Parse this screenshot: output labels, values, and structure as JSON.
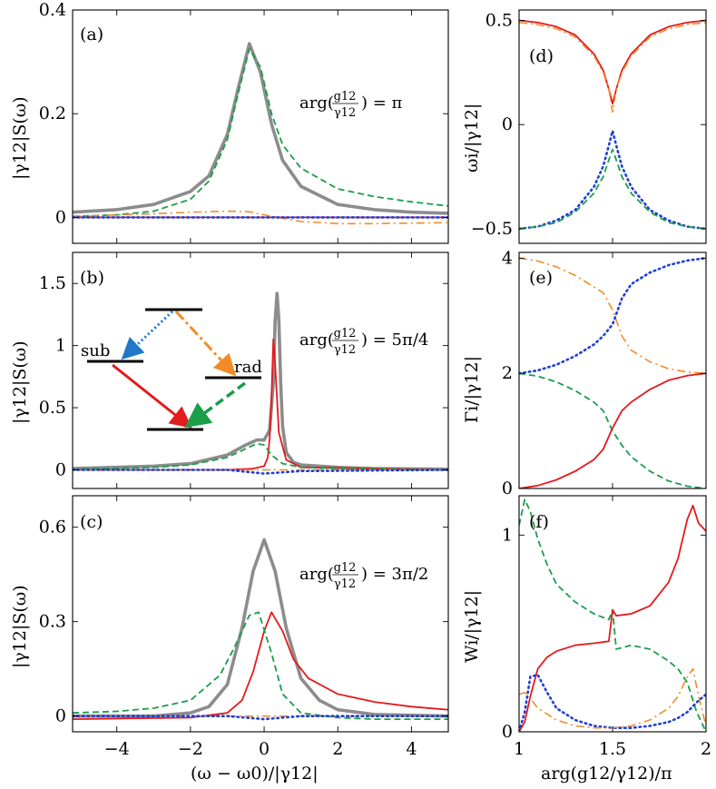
{
  "colors": {
    "gray": "#8c8c8c",
    "red": "#e41a1c",
    "green": "#1a9e4a",
    "orange": "#f28c28",
    "blue": "#1f3fd8",
    "cyan_blue": "#1f78c8"
  },
  "labels": {
    "left_ylabel": "|γ12|S(ω)",
    "left_xlabel": "(ω − ω0)/|γ12|",
    "right_xlabel": "arg(g12/γ12)/π",
    "right_ylabel_d": "ωi/|γ12|",
    "right_ylabel_e": "Γi/|γ12|",
    "right_ylabel_f": "Wi/|γ12|",
    "inset_sub": "sub",
    "inset_rad": "rad"
  },
  "panels_left": [
    {
      "tag": "(a)",
      "annotation_prefix": "arg(",
      "annotation_num": "g12",
      "annotation_den": "γ12",
      "annotation_suffix": ") = π",
      "yticks": [
        "0",
        "0.2",
        "0.4"
      ],
      "yticklabels": [
        "0",
        "0.2",
        "0.4"
      ],
      "ylim": [
        -0.05,
        0.4
      ]
    },
    {
      "tag": "(b)",
      "annotation_prefix": "arg(",
      "annotation_num": "g12",
      "annotation_den": "γ12",
      "annotation_suffix": ") = 5π/4",
      "yticks": [
        "0",
        "0.5",
        "1",
        "1.5"
      ],
      "ylim": [
        -0.15,
        1.75
      ]
    },
    {
      "tag": "(c)",
      "annotation_prefix": "arg(",
      "annotation_num": "g12",
      "annotation_den": "γ12",
      "annotation_suffix": ") = 3π/2",
      "yticks": [
        "0",
        "0.3",
        "0.6"
      ],
      "ylim": [
        -0.05,
        0.7
      ]
    }
  ],
  "panels_right": [
    {
      "tag": "(d)",
      "yticks": [
        "−0.5",
        "0",
        "0.5"
      ]
    },
    {
      "tag": "(e)",
      "yticks": [
        "0",
        "2",
        "4"
      ]
    },
    {
      "tag": "(f)",
      "yticks": [
        "0",
        "1"
      ]
    }
  ],
  "left_xticks": [
    "−4",
    "−2",
    "0",
    "2",
    "4"
  ],
  "right_xticks": [
    "1",
    "1.5",
    "2"
  ],
  "chart_data": [
    {
      "type": "line",
      "panel": "(a)",
      "xlim": [
        -5.2,
        5
      ],
      "ylim": [
        -0.05,
        0.4
      ],
      "series": [
        {
          "color": "gray",
          "style": "solid",
          "x": [
            -5.2,
            -4,
            -3,
            -2,
            -1.5,
            -1,
            -0.7,
            -0.4,
            -0.1,
            0.2,
            0.5,
            1,
            2,
            3,
            4,
            5
          ],
          "y": [
            0.01,
            0.015,
            0.025,
            0.05,
            0.08,
            0.16,
            0.25,
            0.335,
            0.28,
            0.18,
            0.11,
            0.06,
            0.025,
            0.015,
            0.01,
            0.008
          ]
        },
        {
          "color": "green",
          "style": "dashed",
          "x": [
            -5.2,
            -4,
            -3,
            -2,
            -1.5,
            -1,
            -0.7,
            -0.4,
            -0.1,
            0.2,
            0.5,
            1,
            2,
            3,
            4,
            5
          ],
          "y": [
            0.002,
            0.005,
            0.012,
            0.035,
            0.07,
            0.15,
            0.24,
            0.325,
            0.29,
            0.2,
            0.14,
            0.095,
            0.055,
            0.04,
            0.03,
            0.022
          ]
        },
        {
          "color": "orange",
          "style": "dashdot",
          "x": [
            -5.2,
            -3,
            -2,
            -1,
            -0.4,
            0,
            1,
            2,
            3,
            5
          ],
          "y": [
            0.002,
            0.007,
            0.01,
            0.012,
            0.011,
            0.005,
            -0.008,
            -0.012,
            -0.012,
            -0.01
          ]
        },
        {
          "color": "red",
          "style": "solid",
          "x": [
            -5.2,
            5
          ],
          "y": [
            0,
            0
          ]
        },
        {
          "color": "blue",
          "style": "dotted",
          "x": [
            -5.2,
            5
          ],
          "y": [
            0,
            0
          ]
        }
      ]
    },
    {
      "type": "line",
      "panel": "(b)",
      "xlim": [
        -5.2,
        5
      ],
      "ylim": [
        -0.15,
        1.75
      ],
      "series": [
        {
          "color": "gray",
          "style": "solid",
          "x": [
            -5.2,
            -3,
            -2,
            -1,
            -0.5,
            -0.2,
            0,
            0.15,
            0.25,
            0.3,
            0.35,
            0.4,
            0.45,
            0.5,
            0.6,
            0.8,
            1,
            2,
            3,
            5
          ],
          "y": [
            0.01,
            0.03,
            0.05,
            0.12,
            0.2,
            0.24,
            0.24,
            0.32,
            0.7,
            1.2,
            1.42,
            1.2,
            0.7,
            0.35,
            0.14,
            0.06,
            0.04,
            0.02,
            0.01,
            0.005
          ]
        },
        {
          "color": "red",
          "style": "solid",
          "x": [
            -5.2,
            -1,
            -0.3,
            0,
            0.1,
            0.15,
            0.2,
            0.25,
            0.3,
            0.4,
            0.6,
            1,
            5
          ],
          "y": [
            0,
            0,
            0.01,
            0.03,
            0.1,
            0.25,
            0.6,
            1.05,
            0.85,
            0.3,
            0.08,
            0.02,
            0
          ]
        },
        {
          "color": "green",
          "style": "dashed",
          "x": [
            -5.2,
            -3,
            -2,
            -1,
            -0.5,
            -0.2,
            0,
            0.2,
            0.5,
            1,
            2,
            5
          ],
          "y": [
            0.005,
            0.02,
            0.04,
            0.1,
            0.17,
            0.21,
            0.2,
            0.12,
            0.05,
            0.02,
            0.01,
            0
          ]
        },
        {
          "color": "orange",
          "style": "dashdot",
          "x": [
            -5.2,
            5
          ],
          "y": [
            0,
            0
          ]
        },
        {
          "color": "blue",
          "style": "dotted",
          "x": [
            -5.2,
            -1,
            0,
            1,
            5
          ],
          "y": [
            0,
            0,
            -0.03,
            -0.01,
            0
          ]
        }
      ]
    },
    {
      "type": "line",
      "panel": "(c)",
      "xlim": [
        -5.2,
        5
      ],
      "ylim": [
        -0.05,
        0.7
      ],
      "series": [
        {
          "color": "gray",
          "style": "solid",
          "x": [
            -5.2,
            -3,
            -2,
            -1.5,
            -1,
            -0.6,
            -0.3,
            0,
            0.3,
            0.6,
            1,
            1.5,
            2,
            3,
            5
          ],
          "y": [
            0,
            0,
            0.01,
            0.03,
            0.1,
            0.28,
            0.46,
            0.56,
            0.46,
            0.28,
            0.12,
            0.05,
            0.02,
            0.005,
            0
          ]
        },
        {
          "color": "red",
          "style": "solid",
          "x": [
            -5.2,
            -2,
            -1,
            -0.6,
            -0.3,
            0,
            0.2,
            0.5,
            0.8,
            1.2,
            2,
            3,
            4,
            5
          ],
          "y": [
            -0.01,
            -0.005,
            0.01,
            0.05,
            0.14,
            0.27,
            0.33,
            0.27,
            0.18,
            0.12,
            0.07,
            0.045,
            0.03,
            0.02
          ]
        },
        {
          "color": "green",
          "style": "dashed",
          "x": [
            -5.2,
            -4,
            -3,
            -2,
            -1.2,
            -0.8,
            -0.4,
            -0.15,
            0.2,
            0.5,
            1,
            2,
            3,
            5
          ],
          "y": [
            0.01,
            0.015,
            0.025,
            0.05,
            0.13,
            0.22,
            0.32,
            0.33,
            0.2,
            0.07,
            0.01,
            -0.005,
            -0.01,
            -0.01
          ]
        },
        {
          "color": "orange",
          "style": "dashdot",
          "x": [
            -5.2,
            5
          ],
          "y": [
            0,
            0
          ]
        },
        {
          "color": "blue",
          "style": "dotted",
          "x": [
            -5.2,
            -1,
            0,
            1,
            5
          ],
          "y": [
            0,
            0,
            -0.01,
            0,
            0
          ]
        }
      ]
    },
    {
      "type": "line",
      "panel": "(d)",
      "xlim": [
        1,
        2
      ],
      "ylim": [
        -0.57,
        0.55
      ],
      "series": [
        {
          "color": "red",
          "style": "solid",
          "x": [
            1,
            1.1,
            1.2,
            1.3,
            1.4,
            1.45,
            1.48,
            1.5,
            1.52,
            1.55,
            1.6,
            1.7,
            1.8,
            1.9,
            2
          ],
          "y": [
            0.5,
            0.49,
            0.47,
            0.43,
            0.34,
            0.26,
            0.17,
            0.1,
            0.17,
            0.26,
            0.34,
            0.43,
            0.47,
            0.49,
            0.5
          ]
        },
        {
          "color": "orange",
          "style": "dashdot",
          "x": [
            1,
            1.1,
            1.2,
            1.3,
            1.4,
            1.45,
            1.48,
            1.5,
            1.52,
            1.55,
            1.6,
            1.7,
            1.8,
            1.9,
            2
          ],
          "y": [
            0.49,
            0.48,
            0.46,
            0.42,
            0.33,
            0.25,
            0.17,
            0.06,
            0.17,
            0.25,
            0.33,
            0.42,
            0.46,
            0.48,
            0.49
          ]
        },
        {
          "color": "blue",
          "style": "dotted",
          "x": [
            1,
            1.1,
            1.2,
            1.3,
            1.4,
            1.45,
            1.48,
            1.5,
            1.52,
            1.55,
            1.6,
            1.7,
            1.8,
            1.9,
            2
          ],
          "y": [
            -0.5,
            -0.49,
            -0.46,
            -0.41,
            -0.3,
            -0.2,
            -0.1,
            -0.03,
            -0.1,
            -0.2,
            -0.3,
            -0.41,
            -0.46,
            -0.49,
            -0.5
          ]
        },
        {
          "color": "green",
          "style": "dashed",
          "x": [
            1,
            1.1,
            1.2,
            1.3,
            1.4,
            1.45,
            1.48,
            1.5,
            1.52,
            1.55,
            1.6,
            1.7,
            1.8,
            1.9,
            2
          ],
          "y": [
            -0.5,
            -0.49,
            -0.47,
            -0.42,
            -0.33,
            -0.25,
            -0.17,
            -0.12,
            -0.17,
            -0.25,
            -0.33,
            -0.42,
            -0.47,
            -0.49,
            -0.5
          ]
        }
      ]
    },
    {
      "type": "line",
      "panel": "(e)",
      "xlim": [
        1,
        2
      ],
      "ylim": [
        0,
        4.1
      ],
      "series": [
        {
          "color": "orange",
          "style": "dashdot",
          "x": [
            1,
            1.1,
            1.2,
            1.3,
            1.4,
            1.45,
            1.5,
            1.55,
            1.6,
            1.7,
            1.8,
            1.9,
            2
          ],
          "y": [
            4,
            3.95,
            3.85,
            3.7,
            3.5,
            3.4,
            3.1,
            2.65,
            2.4,
            2.2,
            2.08,
            2.02,
            2
          ]
        },
        {
          "color": "blue",
          "style": "dotted",
          "x": [
            1,
            1.1,
            1.2,
            1.3,
            1.4,
            1.45,
            1.5,
            1.55,
            1.6,
            1.7,
            1.8,
            1.9,
            2
          ],
          "y": [
            2,
            2.05,
            2.15,
            2.3,
            2.5,
            2.65,
            2.85,
            3.3,
            3.55,
            3.75,
            3.88,
            3.96,
            4
          ]
        },
        {
          "color": "green",
          "style": "dashed",
          "x": [
            1,
            1.1,
            1.2,
            1.3,
            1.4,
            1.45,
            1.5,
            1.55,
            1.6,
            1.7,
            1.8,
            1.9,
            2
          ],
          "y": [
            2,
            1.95,
            1.85,
            1.7,
            1.5,
            1.35,
            1.0,
            0.75,
            0.55,
            0.3,
            0.13,
            0.04,
            0
          ]
        },
        {
          "color": "red",
          "style": "solid",
          "x": [
            1,
            1.1,
            1.2,
            1.3,
            1.4,
            1.45,
            1.5,
            1.55,
            1.6,
            1.7,
            1.8,
            1.9,
            2
          ],
          "y": [
            0,
            0.05,
            0.15,
            0.3,
            0.5,
            0.68,
            1.05,
            1.35,
            1.5,
            1.72,
            1.88,
            1.96,
            2
          ]
        }
      ]
    },
    {
      "type": "line",
      "panel": "(f)",
      "xlim": [
        1,
        2
      ],
      "ylim": [
        0,
        1.2
      ],
      "series": [
        {
          "color": "green",
          "style": "dashed",
          "x": [
            1,
            1.03,
            1.06,
            1.1,
            1.15,
            1.2,
            1.3,
            1.4,
            1.48,
            1.5,
            1.52,
            1.6,
            1.7,
            1.8,
            1.85,
            1.9,
            1.95,
            2
          ],
          "y": [
            1.05,
            1.18,
            1.12,
            0.98,
            0.85,
            0.75,
            0.66,
            0.6,
            0.57,
            0.62,
            0.42,
            0.44,
            0.42,
            0.36,
            0.32,
            0.25,
            0.1,
            0
          ]
        },
        {
          "color": "red",
          "style": "solid",
          "x": [
            1,
            1.03,
            1.06,
            1.1,
            1.15,
            1.2,
            1.3,
            1.4,
            1.48,
            1.5,
            1.52,
            1.6,
            1.7,
            1.8,
            1.85,
            1.9,
            1.93,
            1.96,
            2
          ],
          "y": [
            0,
            0.05,
            0.18,
            0.32,
            0.38,
            0.41,
            0.44,
            0.45,
            0.46,
            0.62,
            0.59,
            0.6,
            0.64,
            0.76,
            0.88,
            1.08,
            1.15,
            1.06,
            1.02
          ]
        },
        {
          "color": "blue",
          "style": "dotted",
          "x": [
            1,
            1.03,
            1.06,
            1.1,
            1.15,
            1.2,
            1.3,
            1.4,
            1.5,
            1.6,
            1.7,
            1.8,
            1.85,
            1.9,
            1.95,
            2
          ],
          "y": [
            0,
            0.1,
            0.28,
            0.29,
            0.2,
            0.12,
            0.06,
            0.03,
            0.02,
            0.02,
            0.03,
            0.05,
            0.07,
            0.1,
            0.15,
            0.19
          ]
        },
        {
          "color": "orange",
          "style": "dashdot",
          "x": [
            1,
            1.03,
            1.06,
            1.1,
            1.2,
            1.3,
            1.4,
            1.5,
            1.6,
            1.7,
            1.8,
            1.85,
            1.9,
            1.93,
            1.96,
            2
          ],
          "y": [
            0.19,
            0.2,
            0.17,
            0.12,
            0.06,
            0.03,
            0.02,
            0.02,
            0.03,
            0.06,
            0.12,
            0.18,
            0.28,
            0.32,
            0.18,
            0.03
          ]
        }
      ]
    }
  ]
}
